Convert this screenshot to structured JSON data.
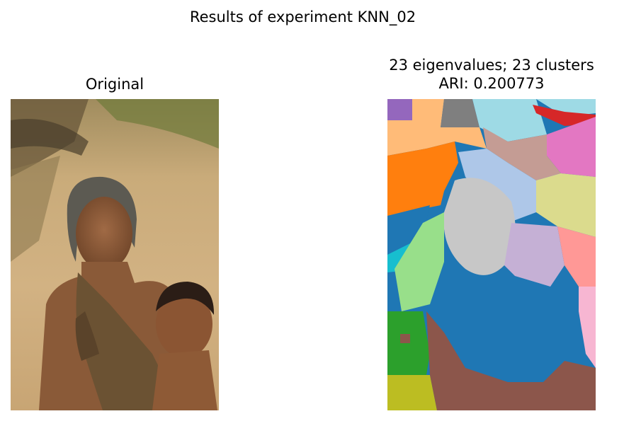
{
  "figure": {
    "suptitle": "Results of experiment KNN_02"
  },
  "left_panel": {
    "title": "Original"
  },
  "right_panel": {
    "title_line1": "23 eigenvalues; 23 clusters",
    "title_line2": "ARI: 0.200773",
    "palette": [
      "#1f77b4",
      "#aec7e8",
      "#ff7f0e",
      "#ffbb78",
      "#2ca02c",
      "#98df8a",
      "#d62728",
      "#ff9896",
      "#9467bd",
      "#c5b0d5",
      "#8c564b",
      "#c49c94",
      "#e377c2",
      "#f7b6d2",
      "#7f7f7f",
      "#c7c7c7",
      "#bcbd22",
      "#dbdb8d",
      "#17becf",
      "#9edae5"
    ]
  }
}
